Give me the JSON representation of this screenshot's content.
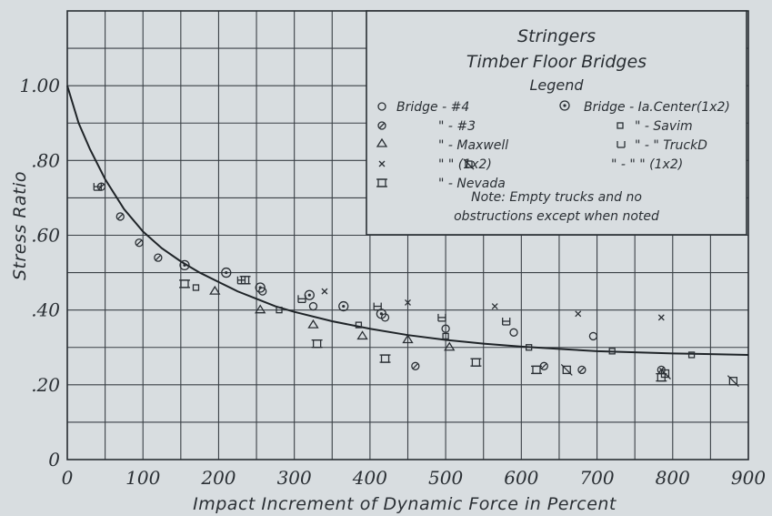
{
  "chart_data": {
    "type": "scatter",
    "title": "Stringers",
    "subtitle": "Timber Floor Bridges",
    "xlabel": "Impact Increment of Dynamic Force in Percent",
    "ylabel": "Stress Ratio",
    "xlim": [
      0,
      900
    ],
    "ylim": [
      0,
      1.2
    ],
    "x_ticks": [
      0,
      100,
      200,
      300,
      400,
      500,
      600,
      700,
      800,
      900
    ],
    "x_tick_labels": [
      "0",
      "100",
      "200",
      "300",
      "400",
      "500",
      "600",
      "700",
      "800",
      "900"
    ],
    "y_ticks": [
      0,
      0.2,
      0.4,
      0.6,
      0.8,
      1.0
    ],
    "y_tick_labels": [
      "0",
      ".20",
      ".40",
      ".60",
      ".80",
      "1.00"
    ],
    "grid": true,
    "legend": {
      "heading": "Legend",
      "placement": "top-right",
      "rows": [
        [
          "Bridge - #4",
          "Bridge - Ia.Center(1x2)"
        ],
        [
          "\" - #3",
          "\" - Savim"
        ],
        [
          "\" - Maxwell",
          "\" - \" TruckD"
        ],
        [
          "\" \" (1x2)",
          "\" - \" \" (1x2)"
        ],
        [
          "\" - Nevada",
          ""
        ]
      ],
      "note_lines": [
        "Note: Empty trucks and no",
        "obstructions except when noted"
      ]
    },
    "curve": {
      "x": [
        0,
        15,
        30,
        50,
        75,
        100,
        125,
        150,
        175,
        200,
        225,
        250,
        275,
        300,
        350,
        400,
        450,
        500,
        550,
        600,
        650,
        700,
        750,
        800,
        850,
        900
      ],
      "y": [
        1.0,
        0.9,
        0.83,
        0.75,
        0.67,
        0.61,
        0.565,
        0.53,
        0.5,
        0.475,
        0.45,
        0.43,
        0.41,
        0.395,
        0.37,
        0.35,
        0.333,
        0.32,
        0.31,
        0.302,
        0.296,
        0.29,
        0.287,
        0.284,
        0.282,
        0.28
      ]
    },
    "series": [
      {
        "symbol": "circle",
        "points": [
          [
            325,
            0.41
          ],
          [
            420,
            0.38
          ],
          [
            500,
            0.35
          ],
          [
            590,
            0.34
          ],
          [
            695,
            0.33
          ],
          [
            258,
            0.45
          ]
        ]
      },
      {
        "symbol": "circle-slash",
        "points": [
          [
            45,
            0.73
          ],
          [
            70,
            0.65
          ],
          [
            95,
            0.58
          ],
          [
            120,
            0.54
          ],
          [
            460,
            0.25
          ],
          [
            630,
            0.25
          ],
          [
            680,
            0.24
          ],
          [
            785,
            0.24
          ]
        ]
      },
      {
        "symbol": "triangle",
        "points": [
          [
            195,
            0.45
          ],
          [
            255,
            0.4
          ],
          [
            325,
            0.36
          ],
          [
            390,
            0.33
          ],
          [
            450,
            0.32
          ],
          [
            505,
            0.3
          ]
        ]
      },
      {
        "symbol": "cross",
        "points": [
          [
            340,
            0.45
          ],
          [
            450,
            0.42
          ],
          [
            565,
            0.41
          ],
          [
            675,
            0.39
          ],
          [
            785,
            0.38
          ]
        ]
      },
      {
        "symbol": "square-bracket",
        "points": [
          [
            155,
            0.47
          ],
          [
            235,
            0.48
          ],
          [
            330,
            0.31
          ],
          [
            420,
            0.27
          ],
          [
            540,
            0.26
          ],
          [
            620,
            0.24
          ],
          [
            785,
            0.22
          ]
        ]
      },
      {
        "symbol": "circle-dot",
        "points": [
          [
            155,
            0.52
          ],
          [
            210,
            0.5
          ],
          [
            255,
            0.46
          ],
          [
            320,
            0.44
          ],
          [
            365,
            0.41
          ],
          [
            415,
            0.39
          ]
        ]
      },
      {
        "symbol": "square",
        "points": [
          [
            170,
            0.46
          ],
          [
            280,
            0.4
          ],
          [
            385,
            0.36
          ],
          [
            500,
            0.33
          ],
          [
            610,
            0.3
          ],
          [
            720,
            0.29
          ],
          [
            825,
            0.28
          ]
        ]
      },
      {
        "symbol": "truck-d",
        "points": [
          [
            40,
            0.73
          ],
          [
            230,
            0.48
          ],
          [
            410,
            0.41
          ],
          [
            495,
            0.38
          ],
          [
            580,
            0.37
          ],
          [
            310,
            0.43
          ]
        ]
      },
      {
        "symbol": "truck-d-1x2",
        "points": [
          [
            880,
            0.21
          ],
          [
            790,
            0.23
          ],
          [
            660,
            0.24
          ]
        ]
      }
    ]
  }
}
